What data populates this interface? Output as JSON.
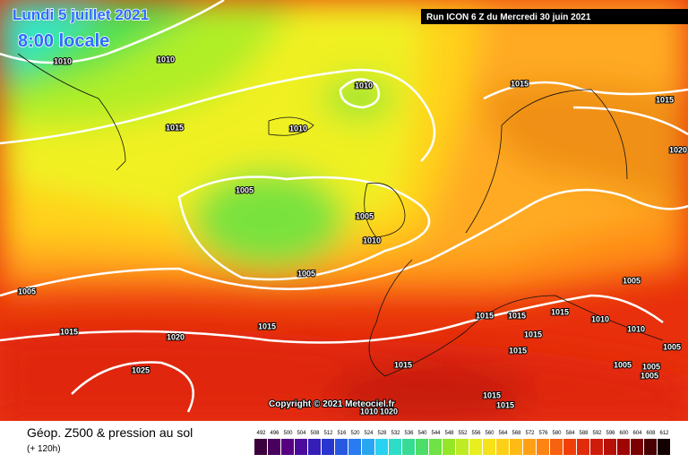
{
  "header": {
    "date": "Lundi 5 juillet 2021",
    "time": "8:00 locale"
  },
  "run_info": "Run ICON 6 Z du Mercredi 30 juin 2021",
  "copyright": "Copyright © 2021 Meteociel.fr",
  "legend": {
    "title": "Géop. Z500 & pression au sol",
    "subtitle": "(+ 120h)",
    "scale": [
      492,
      496,
      500,
      504,
      508,
      512,
      516,
      520,
      524,
      528,
      532,
      536,
      540,
      544,
      548,
      552,
      556,
      560,
      564,
      568,
      572,
      576,
      580,
      584,
      588,
      592,
      596,
      600,
      604,
      608,
      612
    ]
  },
  "isobar_labels": [
    1010,
    1010,
    1010,
    1010,
    1015,
    1015,
    1015,
    1005,
    1005,
    1010,
    1005,
    1005,
    1015,
    1020,
    1015,
    1025,
    1015,
    1015,
    1015,
    1015,
    1015,
    1015,
    1010,
    1010,
    1005,
    1015,
    1015,
    1010,
    1020,
    1005,
    1005,
    1005,
    1005,
    1020
  ]
}
